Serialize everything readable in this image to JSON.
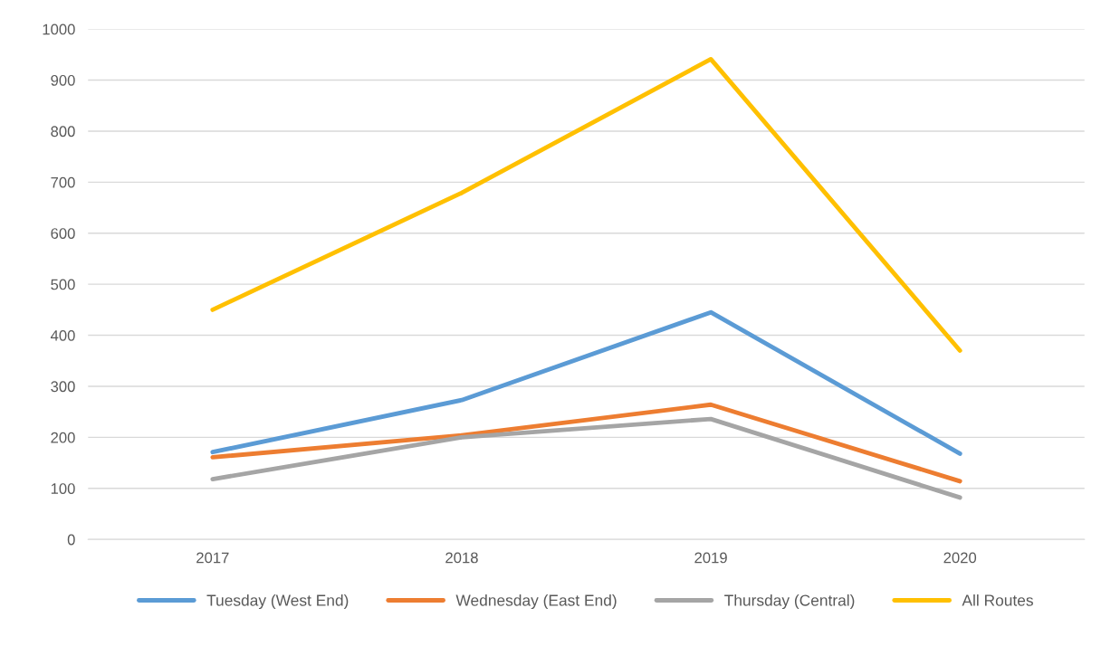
{
  "chart_data": {
    "type": "line",
    "categories": [
      "2017",
      "2018",
      "2019",
      "2020"
    ],
    "series": [
      {
        "name": "Tuesday (West End)",
        "color": "#5b9bd5",
        "values": [
          171,
          273,
          445,
          168
        ]
      },
      {
        "name": "Wednesday (East End)",
        "color": "#ed7d31",
        "values": [
          161,
          204,
          264,
          114
        ]
      },
      {
        "name": "Thursday (Central)",
        "color": "#a5a5a5",
        "values": [
          118,
          200,
          236,
          82
        ]
      },
      {
        "name": "All Routes",
        "color": "#ffc000",
        "values": [
          450,
          679,
          941,
          370
        ]
      }
    ],
    "ylim": [
      0,
      1000
    ],
    "yticks": [
      0,
      100,
      200,
      300,
      400,
      500,
      600,
      700,
      800,
      900,
      1000
    ],
    "grid": "y",
    "legend": "bottom",
    "marker": "none",
    "line_style": "solid"
  }
}
